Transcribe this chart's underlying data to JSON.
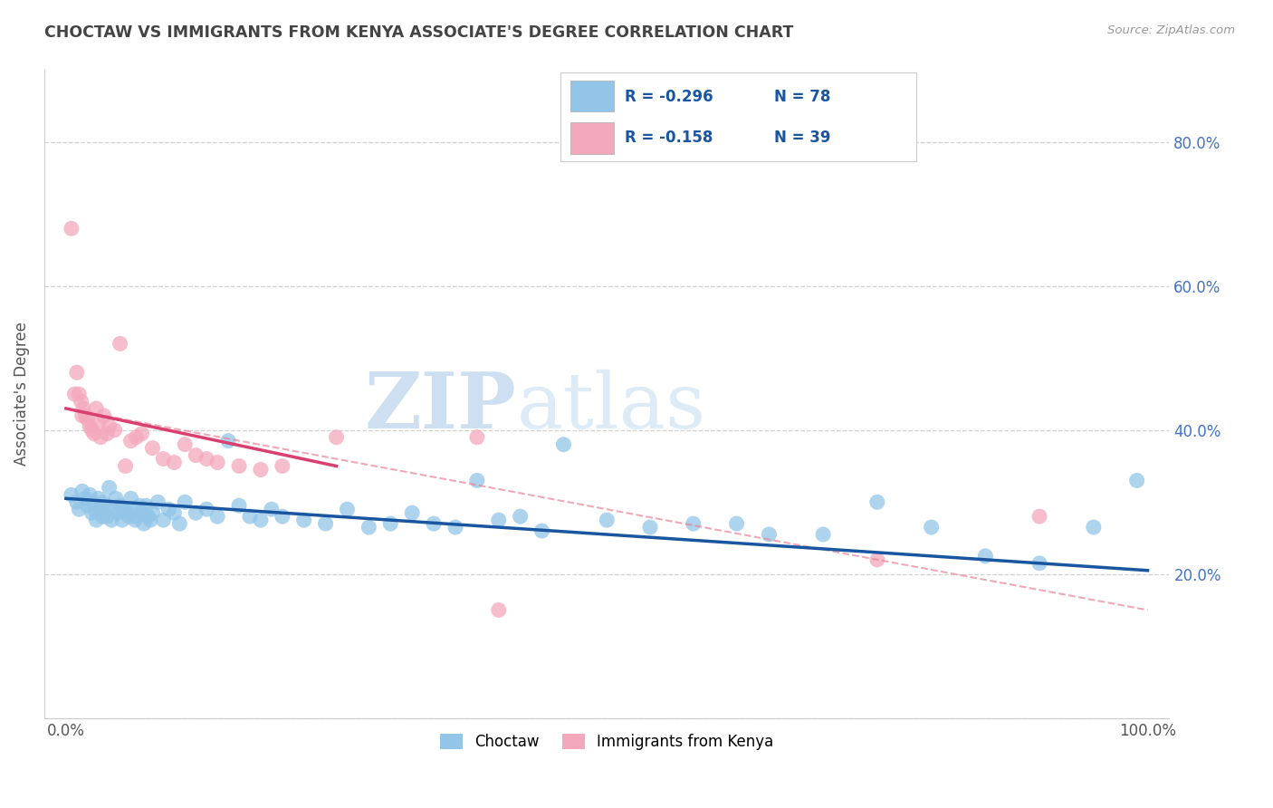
{
  "title": "CHOCTAW VS IMMIGRANTS FROM KENYA ASSOCIATE'S DEGREE CORRELATION CHART",
  "source": "Source: ZipAtlas.com",
  "ylabel": "Associate's Degree",
  "legend_label1": "Choctaw",
  "legend_label2": "Immigrants from Kenya",
  "r1": -0.296,
  "n1": 78,
  "r2": -0.158,
  "n2": 39,
  "color_blue": "#92C5E8",
  "color_pink": "#F4A8BC",
  "color_blue_line": "#1A56A0",
  "color_pink_line": "#D94070",
  "color_pink_dash": "#E8849A",
  "watermark_zip": "ZIP",
  "watermark_atlas": "atlas",
  "blue_scatter_x": [
    0.5,
    1.0,
    1.2,
    1.5,
    1.8,
    2.0,
    2.2,
    2.4,
    2.5,
    2.6,
    2.8,
    3.0,
    3.2,
    3.4,
    3.5,
    3.6,
    3.8,
    4.0,
    4.2,
    4.4,
    4.6,
    4.8,
    5.0,
    5.2,
    5.4,
    5.6,
    5.8,
    6.0,
    6.2,
    6.4,
    6.5,
    6.8,
    7.0,
    7.2,
    7.4,
    7.6,
    7.8,
    8.0,
    8.5,
    9.0,
    9.5,
    10.0,
    10.5,
    11.0,
    12.0,
    13.0,
    14.0,
    15.0,
    16.0,
    17.0,
    18.0,
    19.0,
    20.0,
    22.0,
    24.0,
    26.0,
    28.0,
    30.0,
    32.0,
    34.0,
    36.0,
    38.0,
    40.0,
    42.0,
    44.0,
    46.0,
    50.0,
    54.0,
    58.0,
    62.0,
    65.0,
    70.0,
    75.0,
    80.0,
    85.0,
    90.0,
    95.0,
    99.0
  ],
  "blue_scatter_y": [
    31.0,
    30.0,
    29.0,
    31.5,
    30.5,
    29.5,
    31.0,
    28.5,
    30.0,
    29.0,
    27.5,
    30.5,
    29.0,
    28.0,
    30.0,
    29.5,
    28.0,
    32.0,
    27.5,
    29.0,
    30.5,
    28.5,
    29.5,
    27.5,
    29.0,
    28.5,
    28.0,
    30.5,
    29.0,
    27.5,
    28.0,
    29.5,
    28.5,
    27.0,
    29.5,
    28.0,
    27.5,
    28.5,
    30.0,
    27.5,
    29.0,
    28.5,
    27.0,
    30.0,
    28.5,
    29.0,
    28.0,
    38.5,
    29.5,
    28.0,
    27.5,
    29.0,
    28.0,
    27.5,
    27.0,
    29.0,
    26.5,
    27.0,
    28.5,
    27.0,
    26.5,
    33.0,
    27.5,
    28.0,
    26.0,
    38.0,
    27.5,
    26.5,
    27.0,
    27.0,
    25.5,
    25.5,
    30.0,
    26.5,
    22.5,
    21.5,
    26.5,
    33.0
  ],
  "pink_scatter_x": [
    0.5,
    0.8,
    1.0,
    1.2,
    1.4,
    1.5,
    1.6,
    1.8,
    2.0,
    2.2,
    2.4,
    2.6,
    2.8,
    3.0,
    3.2,
    3.5,
    3.8,
    4.0,
    4.5,
    5.0,
    5.5,
    6.0,
    6.5,
    7.0,
    8.0,
    9.0,
    10.0,
    11.0,
    12.0,
    13.0,
    14.0,
    16.0,
    18.0,
    20.0,
    25.0,
    38.0,
    40.0,
    75.0,
    90.0
  ],
  "pink_scatter_y": [
    68.0,
    45.0,
    48.0,
    45.0,
    44.0,
    42.0,
    43.0,
    42.0,
    41.5,
    40.5,
    40.0,
    39.5,
    43.0,
    41.0,
    39.0,
    42.0,
    39.5,
    40.5,
    40.0,
    52.0,
    35.0,
    38.5,
    39.0,
    39.5,
    37.5,
    36.0,
    35.5,
    38.0,
    36.5,
    36.0,
    35.5,
    35.0,
    34.5,
    35.0,
    39.0,
    39.0,
    15.0,
    22.0,
    28.0
  ],
  "blue_trend_x0": 0,
  "blue_trend_y0": 30.5,
  "blue_trend_x1": 100,
  "blue_trend_y1": 20.5,
  "pink_trend_x0": 0,
  "pink_trend_y0": 43.0,
  "pink_trend_x1": 25,
  "pink_trend_y1": 35.0,
  "pink_dash_x0": 0,
  "pink_dash_y0": 43.0,
  "pink_dash_x1": 100,
  "pink_dash_y1": 15.0,
  "xlim": [
    -2,
    102
  ],
  "ylim": [
    0,
    90
  ],
  "grid_color": "#CCCCCC",
  "background_color": "#FFFFFF",
  "title_color": "#444444",
  "axis_label_color": "#555555",
  "tick_color": "#4472C4",
  "right_ytick_labels": [
    "80.0%",
    "60.0%",
    "40.0%",
    "20.0%"
  ],
  "right_ytick_values": [
    80,
    60,
    40,
    20
  ]
}
